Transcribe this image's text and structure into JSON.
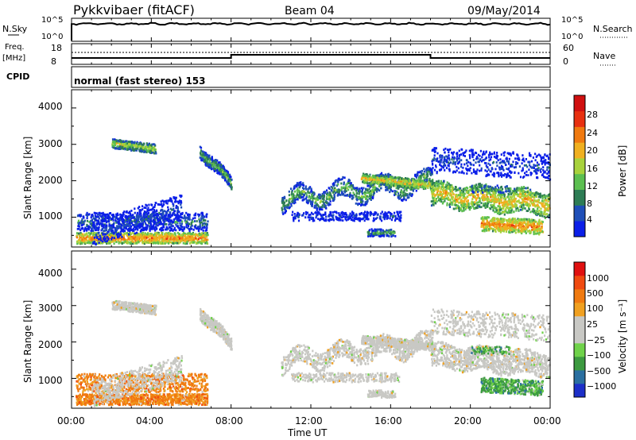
{
  "header": {
    "title": "Pykkvibaer (fitACF)",
    "beam": "Beam 04",
    "date": "09/May/2014"
  },
  "top_panels": {
    "nsky_label": "N.Sky",
    "nsearch_label": "N.Search",
    "nsky_ticks": [
      "10^5",
      "10^0"
    ],
    "nsearch_ticks": [
      "10^5",
      "10^0"
    ],
    "freq_label_1": "Freq.",
    "freq_label_2": "[MHz]",
    "freq_ticks": [
      "18",
      "8"
    ],
    "nave_label": "Nave",
    "nave_ticks": [
      "60",
      "0"
    ],
    "cpid_label": "CPID",
    "cpid_value": "normal (fast stereo) 153"
  },
  "chart_data": [
    {
      "type": "heatmap",
      "name": "power",
      "ylabel": "Slant Range [km]",
      "ylim": [
        180,
        4500
      ],
      "yticks": [
        "4000",
        "3000",
        "2000",
        "1000"
      ],
      "colorbar_label": "Power [dB]",
      "colorbar_ticks": [
        "28",
        "24",
        "20",
        "16",
        "12",
        "8",
        "4"
      ],
      "colors": [
        "#0b1fe8",
        "#1f4fb8",
        "#2e7d55",
        "#5cbf50",
        "#a8d23c",
        "#f0b020",
        "#f07a10",
        "#e83010",
        "#d01010"
      ]
    },
    {
      "type": "heatmap",
      "name": "velocity",
      "ylabel": "Slant Range [km]",
      "ylim": [
        180,
        4500
      ],
      "yticks": [
        "4000",
        "3000",
        "2000",
        "1000"
      ],
      "colorbar_label": "Velocity [m s⁻¹]",
      "colorbar_ticks": [
        "1000",
        "500",
        "100",
        "25",
        "−25",
        "−100",
        "−500",
        "−1000"
      ],
      "colors": [
        "#1c2fc8",
        "#2a6fa0",
        "#3c9a40",
        "#6fd24a",
        "#c8c8c4",
        "#c8c8c4",
        "#f0a020",
        "#f07a10",
        "#f04a10",
        "#e01010"
      ],
      "xlabel": "Time UT",
      "xticks": [
        "00:00",
        "04:00",
        "08:00",
        "12:00",
        "16:00",
        "20:00",
        "00:00"
      ]
    }
  ]
}
